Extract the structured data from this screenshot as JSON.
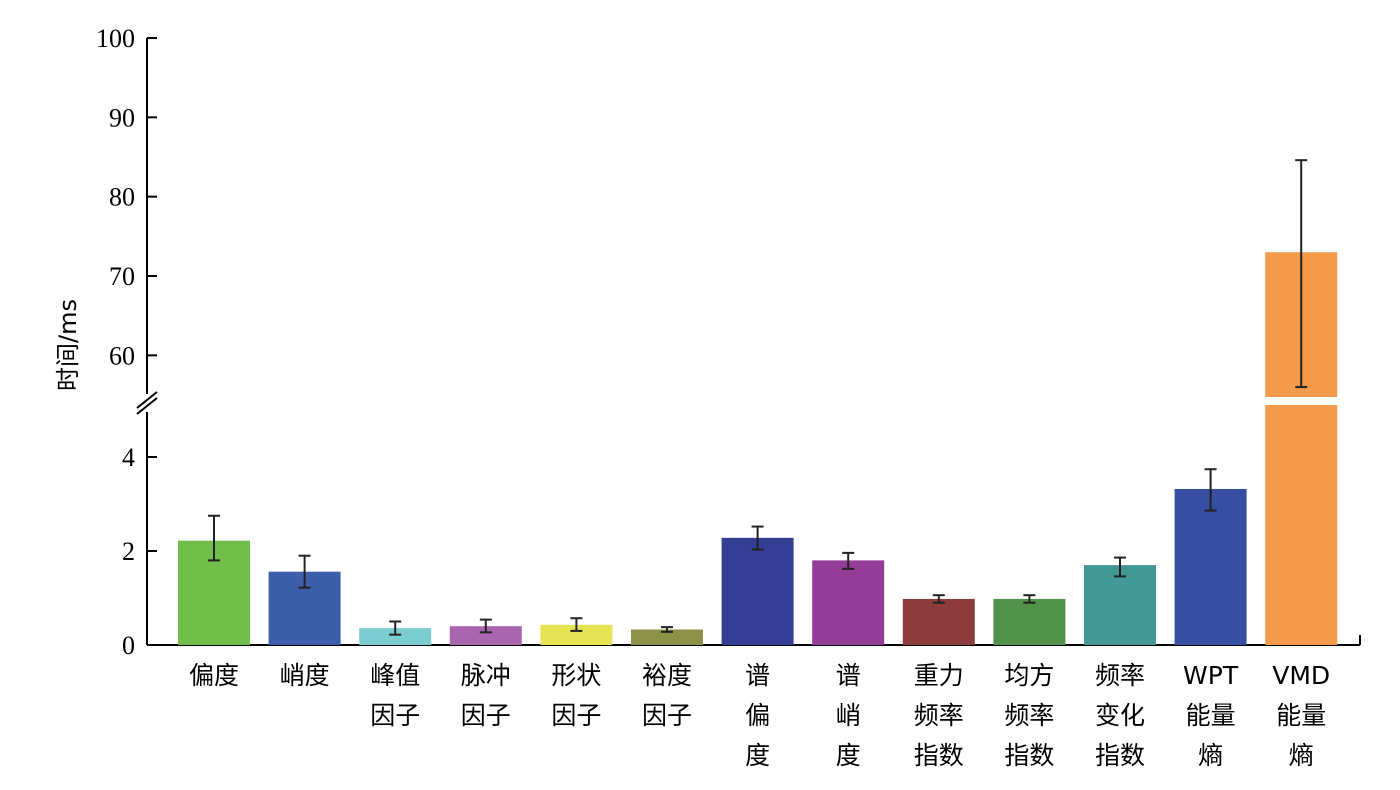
{
  "chart_data": {
    "type": "bar",
    "ylabel": "时间/ms",
    "y_axis_break": true,
    "lower_range": [
      0,
      5
    ],
    "upper_range": [
      55,
      100
    ],
    "lower_ticks": [
      "0",
      "2",
      "4"
    ],
    "upper_ticks": [
      "60",
      "70",
      "80",
      "90",
      "100"
    ],
    "categories": [
      [
        "偏度"
      ],
      [
        "峭度"
      ],
      [
        "峰值",
        "因子"
      ],
      [
        "脉冲",
        "因子"
      ],
      [
        "形状",
        "因子"
      ],
      [
        "裕度",
        "因子"
      ],
      [
        "谱",
        "偏",
        "度"
      ],
      [
        "谱",
        "峭",
        "度"
      ],
      [
        "重力",
        "频率",
        "指数"
      ],
      [
        "均方",
        "频率",
        "指数"
      ],
      [
        "频率",
        "变化",
        "指数"
      ],
      [
        "WPT",
        "能量",
        "熵"
      ],
      [
        "VMD",
        "能量",
        "熵"
      ]
    ],
    "values": [
      2.22,
      1.56,
      0.36,
      0.4,
      0.43,
      0.33,
      2.28,
      1.8,
      0.98,
      0.98,
      1.7,
      3.32,
      73
    ],
    "err_low": [
      1.8,
      1.22,
      0.22,
      0.27,
      0.3,
      0.28,
      2.03,
      1.62,
      0.9,
      0.9,
      1.46,
      2.86,
      56
    ],
    "err_high": [
      2.75,
      1.9,
      0.5,
      0.54,
      0.57,
      0.38,
      2.52,
      1.96,
      1.06,
      1.06,
      1.86,
      3.74,
      84.6
    ],
    "colors": [
      "#71bf4a",
      "#3d5eab",
      "#7ccdd0",
      "#aa65b0",
      "#e6e454",
      "#8b9149",
      "#333e94",
      "#933d99",
      "#8e3b3b",
      "#51934a",
      "#419895",
      "#384ea2",
      "#f49a4b"
    ],
    "grid": false,
    "legend": "none"
  }
}
